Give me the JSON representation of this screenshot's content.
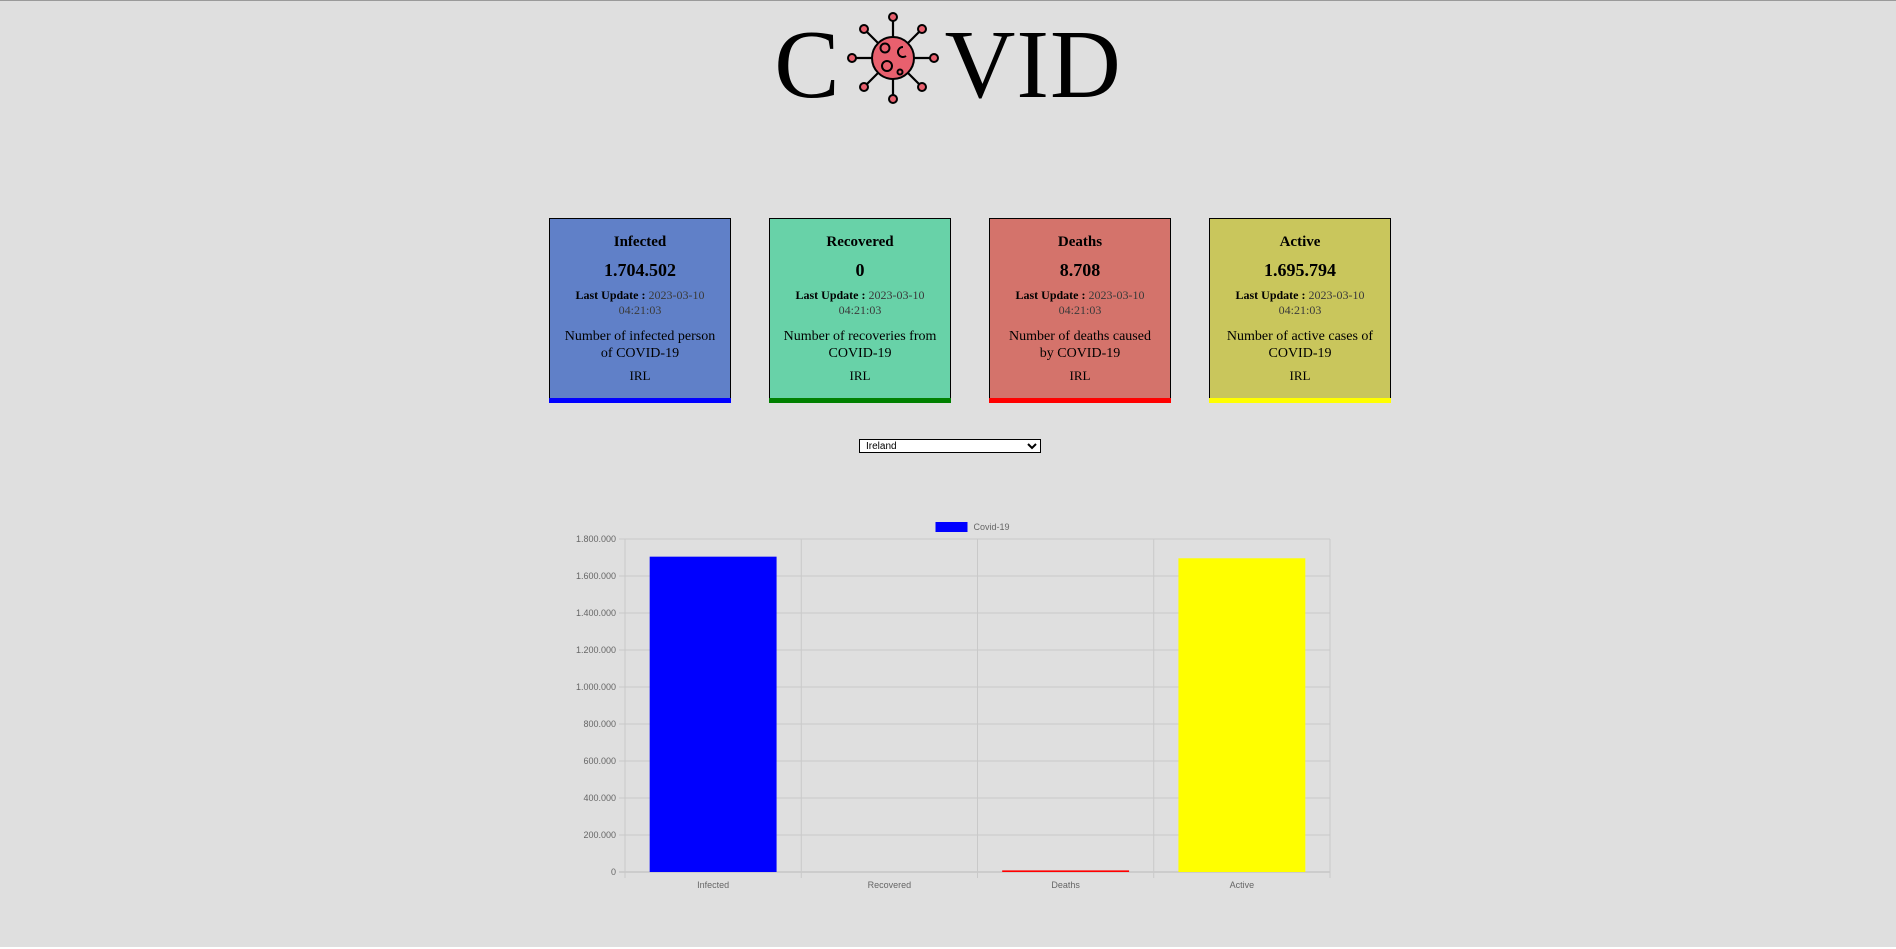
{
  "header": {
    "title_left": "C",
    "title_right": "VID",
    "logo_icon": "virus-icon"
  },
  "colors": {
    "infected_bg": "#6080c8",
    "infected_bar": "#0000ff",
    "recovered_bg": "#68d2a8",
    "recovered_bar": "#008000",
    "deaths_bg": "#d4736b",
    "deaths_bar": "#ff0000",
    "active_bg": "#c9c65c",
    "active_bar": "#ffff00",
    "virus": "#e8606e"
  },
  "cards": [
    {
      "title": "Infected",
      "value": "1.704.502",
      "update_label": "Last Update :",
      "timestamp": "2023-03-10 04:21:03",
      "description": "Number of infected person of COVID-19",
      "code": "IRL"
    },
    {
      "title": "Recovered",
      "value": "0",
      "update_label": "Last Update :",
      "timestamp": "2023-03-10 04:21:03",
      "description": "Number of recoveries from COVID-19",
      "code": "IRL"
    },
    {
      "title": "Deaths",
      "value": "8.708",
      "update_label": "Last Update :",
      "timestamp": "2023-03-10 04:21:03",
      "description": "Number of deaths caused by COVID-19",
      "code": "IRL"
    },
    {
      "title": "Active",
      "value": "1.695.794",
      "update_label": "Last Update :",
      "timestamp": "2023-03-10 04:21:03",
      "description": "Number of active cases of COVID-19",
      "code": "IRL"
    }
  ],
  "country_select": {
    "selected": "Ireland"
  },
  "chart_data": {
    "type": "bar",
    "categories": [
      "Infected",
      "Recovered",
      "Deaths",
      "Active"
    ],
    "series": [
      {
        "name": "Covid-19",
        "values": [
          1704502,
          0,
          8708,
          1695794
        ]
      }
    ],
    "bar_colors": [
      "#0000ff",
      "#008000",
      "#ff0000",
      "#ffff00"
    ],
    "legend_color": "#0000ff",
    "ylim": [
      0,
      1800000
    ],
    "yticks": [
      0,
      200000,
      400000,
      600000,
      800000,
      1000000,
      1200000,
      1400000,
      1600000,
      1800000
    ],
    "ytick_labels": [
      "0",
      "200.000",
      "400.000",
      "600.000",
      "800.000",
      "1.000.000",
      "1.200.000",
      "1.400.000",
      "1.600.000",
      "1.800.000"
    ],
    "grid": true,
    "legend_position": "top"
  }
}
